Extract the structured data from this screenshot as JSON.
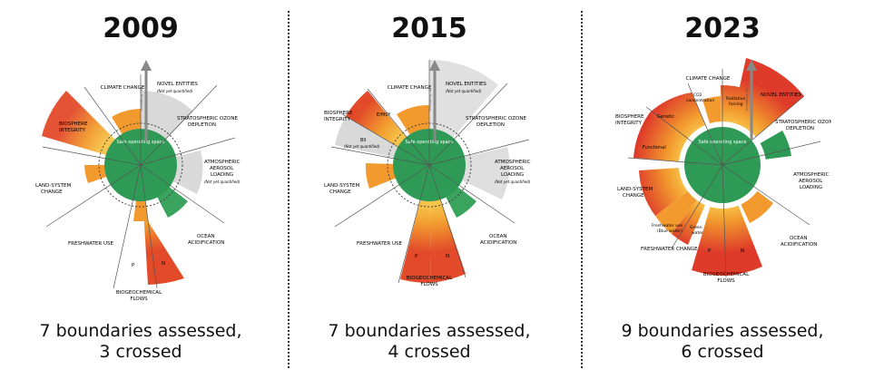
{
  "colors": {
    "safe": "#2e9a56",
    "safe_dark": "#1f7a43",
    "orange": "#f29a2e",
    "red": "#de3b2a",
    "grey": "#c8c8c8"
  },
  "panels": [
    {
      "year": "2009",
      "summary_line1": "7 boundaries assessed,",
      "summary_line2": "3 crossed",
      "labels": {
        "climate": "CLIMATE CHANGE",
        "novel": "NOVEL ENTITIES",
        "novel_note": "(Not yet quantified)",
        "ozone": "STRATOSPHERIC OZONE\nDEPLETION",
        "aerosol": "ATMOSPHERIC\nAEROSOL\nLOADING",
        "aerosol_note": "(Not yet quantified)",
        "ocean": "OCEAN\nACIDIFICATION",
        "bio": "BIOGEOCHEMICAL\nFLOWS",
        "fresh": "FRESHWATER USE",
        "land": "LAND-SYSTEM\nCHANGE",
        "biosphere": "BIOSPHERE\nINTEGRITY",
        "p": "P",
        "n": "N",
        "safe": "Safe operating space",
        "arrow": "Increasing risk"
      }
    },
    {
      "year": "2015",
      "summary_line1": "7 boundaries assessed,",
      "summary_line2": "4 crossed",
      "labels": {
        "climate": "CLIMATE CHANGE",
        "novel": "NOVEL ENTITIES",
        "novel_note": "(Not yet quantified)",
        "ozone": "STRATOSPHERIC OZONE\nDEPLETION",
        "aerosol": "ATMOSPHERIC\nAEROSOL\nLOADING",
        "aerosol_note": "(Not yet quantified)",
        "ocean": "OCEAN\nACIDIFICATION",
        "bio": "BIOGEOCHEMICAL\nFLOWS",
        "fresh": "FRESHWATER USE",
        "land": "LAND-SYSTEM\nCHANGE",
        "biosphere": "BIOSPHERE\nINTEGRITY",
        "emsy": "E/MSY",
        "bii": "BII",
        "bii_note": "(Not yet quantified)",
        "p": "P",
        "n": "N",
        "safe": "Safe operating space",
        "arrow": "Increasing risk"
      }
    },
    {
      "year": "2023",
      "summary_line1": "9 boundaries assessed,",
      "summary_line2": "6 crossed",
      "labels": {
        "climate": "CLIMATE CHANGE",
        "co2": "CO2\nconcentration",
        "forcing": "Radiative\nforcing",
        "novel": "NOVEL ENTITIES",
        "ozone": "STRATOSPHERIC OZONE\nDEPLETION",
        "aerosol": "ATMOSPHERIC\nAEROSOL\nLOADING",
        "ocean": "OCEAN\nACIDIFICATION",
        "bio": "BIOGEOCHEMICAL\nFLOWS",
        "fresh": "FRESHWATER CHANGE",
        "blue": "Freshwater use\n(Blue water)",
        "green": "Green\nwater",
        "land": "LAND-SYSTEM\nCHANGE",
        "biosphere": "BIOSPHERE\nINTEGRITY",
        "genetic": "Genetic",
        "functional": "Functional",
        "p": "P",
        "n": "N",
        "safe": "Safe operating space",
        "arrow": "Increasing risk"
      }
    }
  ]
}
